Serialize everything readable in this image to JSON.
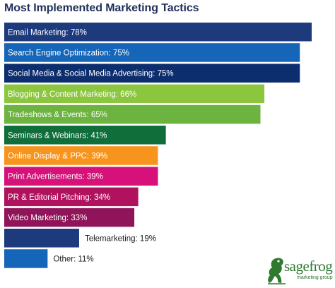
{
  "chart_data": {
    "type": "bar",
    "orientation": "horizontal",
    "title": "Most Implemented Marketing Tactics",
    "xlim": [
      0,
      100
    ],
    "grid": false,
    "legend": "none",
    "bars": [
      {
        "label": "Email Marketing: 78%",
        "value": 78,
        "color": "#1d3a7d"
      },
      {
        "label": "Search Engine Optimization: 75%",
        "value": 75,
        "color": "#1565b8"
      },
      {
        "label": "Social Media & Social Media Advertising: 75%",
        "value": 75,
        "color": "#0d2e6e"
      },
      {
        "label": "Blogging & Content Marketing: 66%",
        "value": 66,
        "color": "#8cc63f"
      },
      {
        "label": "Tradeshows & Events: 65%",
        "value": 65,
        "color": "#6cb33f"
      },
      {
        "label": "Seminars & Webinars: 41%",
        "value": 41,
        "color": "#0f6e3a"
      },
      {
        "label": "Online Display & PPC: 39%",
        "value": 39,
        "color": "#f7941d"
      },
      {
        "label": "Print Advertisements: 39%",
        "value": 39,
        "color": "#d6127a"
      },
      {
        "label": "PR & Editorial Pitching: 34%",
        "value": 34,
        "color": "#b0125e"
      },
      {
        "label": "Video Marketing: 33%",
        "value": 33,
        "color": "#8f1459"
      },
      {
        "label": "Telemarketing: 19%",
        "value": 19,
        "color": "#1d3a7d"
      },
      {
        "label": "Other: 11%",
        "value": 11,
        "color": "#1565b8"
      }
    ]
  },
  "logo": {
    "word": "sagefrog",
    "sub": "marketing group",
    "color": "#2e7a2f",
    "icon": "frog-icon"
  }
}
